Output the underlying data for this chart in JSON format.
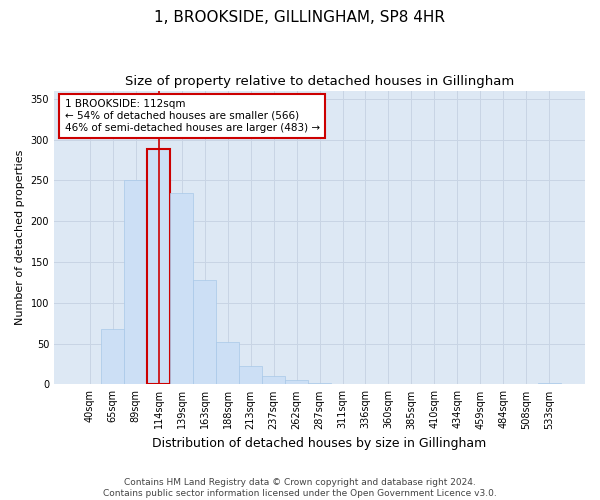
{
  "title": "1, BROOKSIDE, GILLINGHAM, SP8 4HR",
  "subtitle": "Size of property relative to detached houses in Gillingham",
  "xlabel": "Distribution of detached houses by size in Gillingham",
  "ylabel": "Number of detached properties",
  "categories": [
    "40sqm",
    "65sqm",
    "89sqm",
    "114sqm",
    "139sqm",
    "163sqm",
    "188sqm",
    "213sqm",
    "237sqm",
    "262sqm",
    "287sqm",
    "311sqm",
    "336sqm",
    "360sqm",
    "385sqm",
    "410sqm",
    "434sqm",
    "459sqm",
    "484sqm",
    "508sqm",
    "533sqm"
  ],
  "values": [
    0,
    68,
    250,
    288,
    235,
    128,
    52,
    22,
    10,
    5,
    2,
    1,
    1,
    1,
    0,
    0,
    0,
    0,
    0,
    0,
    2
  ],
  "bar_color": "#ccdff5",
  "bar_edge_color": "#a8c8e8",
  "highlight_bar_index": 3,
  "highlight_bar_edge_color": "#cc0000",
  "highlight_line_color": "#cc0000",
  "annotation_text": "1 BROOKSIDE: 112sqm\n← 54% of detached houses are smaller (566)\n46% of semi-detached houses are larger (483) →",
  "annotation_box_edge_color": "#cc0000",
  "ylim": [
    0,
    360
  ],
  "yticks": [
    0,
    50,
    100,
    150,
    200,
    250,
    300,
    350
  ],
  "grid_color": "#c8d4e4",
  "background_color": "#dde8f4",
  "footer_line1": "Contains HM Land Registry data © Crown copyright and database right 2024.",
  "footer_line2": "Contains public sector information licensed under the Open Government Licence v3.0.",
  "title_fontsize": 11,
  "subtitle_fontsize": 9.5,
  "xlabel_fontsize": 9,
  "ylabel_fontsize": 8,
  "tick_fontsize": 7,
  "annotation_fontsize": 7.5,
  "footer_fontsize": 6.5
}
